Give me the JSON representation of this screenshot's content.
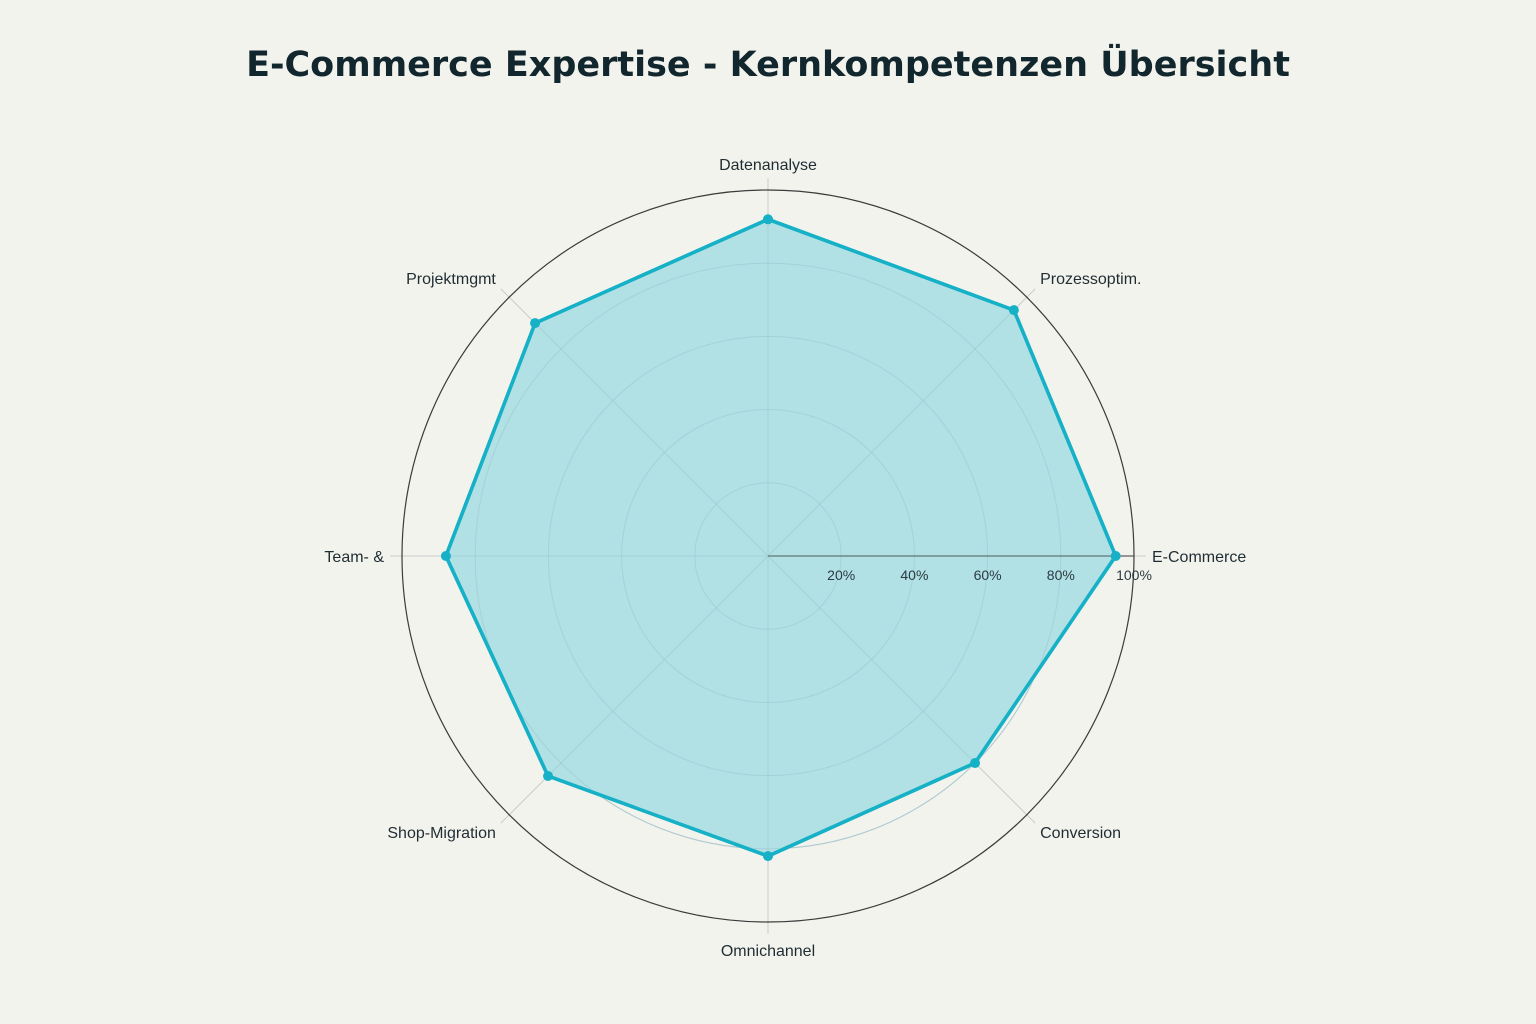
{
  "chart_data": {
    "type": "radar",
    "title": "E-Commerce Expertise - Kernkompetenzen Übersicht",
    "categories": [
      "E-Commerce",
      "Prozessoptim.",
      "Datenanalyse",
      "Projektmgmt",
      "Team- &",
      "Shop-Migration",
      "Omnichannel",
      "Conversion"
    ],
    "series": [
      {
        "values": [
          95,
          95,
          92,
          90,
          88,
          85,
          82,
          80
        ]
      }
    ],
    "radial_ticks": [
      "20%",
      "40%",
      "60%",
      "80%",
      "100%"
    ],
    "radial_tick_values": [
      20,
      40,
      60,
      80,
      100
    ],
    "rlim": [
      0,
      100
    ],
    "grid": true,
    "colors": {
      "line": "#17b1c7",
      "fill": "#b1e1e5",
      "background": "#f3f3ee",
      "outer_ring": "#3b3b3b",
      "grid": "#c9cdcc"
    }
  }
}
